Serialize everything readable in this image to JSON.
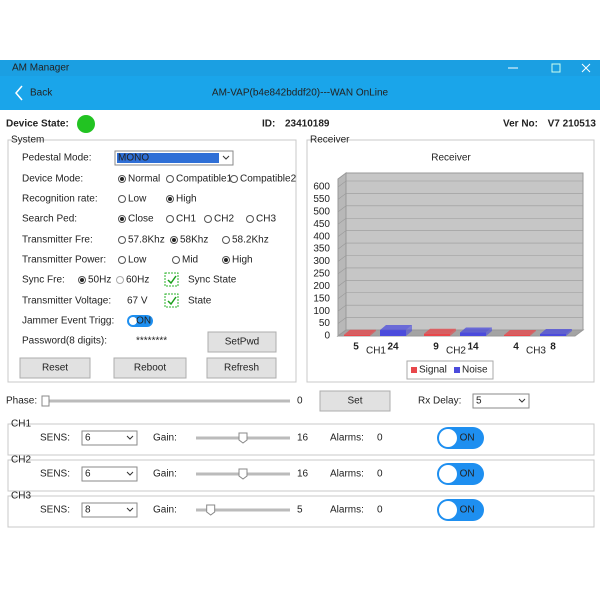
{
  "window": {
    "title": "AM Manager"
  },
  "header": {
    "back": "Back",
    "title": "AM-VAP(b4e842bddf20)---WAN OnLine"
  },
  "status": {
    "device_state_label": "Device State:",
    "id_label": "ID:",
    "id": "23410189",
    "ver_label": "Ver No:",
    "ver": "V7 210513"
  },
  "system": {
    "title": "System",
    "pedestal_mode": {
      "label": "Pedestal Mode:",
      "value": "MONO"
    },
    "device_mode": {
      "label": "Device Mode:",
      "options": [
        "Normal",
        "Compatible1",
        "Compatible2"
      ],
      "selected": 0
    },
    "recognition_rate": {
      "label": "Recognition rate:",
      "options": [
        "Low",
        "High"
      ],
      "selected": 1
    },
    "search_ped": {
      "label": "Search Ped:",
      "options": [
        "Close",
        "CH1",
        "CH2",
        "CH3"
      ],
      "selected": 0
    },
    "transmitter_fre": {
      "label": "Transmitter Fre:",
      "options": [
        "57.8Khz",
        "58Khz",
        "58.2Khz"
      ],
      "selected": 1
    },
    "transmitter_power": {
      "label": "Transmitter Power:",
      "options": [
        "Low",
        "Mid",
        "High"
      ],
      "selected": 2
    },
    "sync_fre": {
      "label": "Sync Fre:",
      "options": [
        "50Hz",
        "60Hz"
      ],
      "selected": 0,
      "state_label": "Sync State"
    },
    "transmitter_voltage": {
      "label": "Transmitter Voltage:",
      "value": "67 V",
      "state_label": "State"
    },
    "jammer": {
      "label": "Jammer Event Trigg:",
      "toggle": "ON"
    },
    "password": {
      "label": "Password(8 digits):",
      "value": "********",
      "button": "SetPwd"
    },
    "buttons": [
      "Reset",
      "Reboot",
      "Refresh"
    ]
  },
  "receiver": {
    "title": "Receiver"
  },
  "chart_data": {
    "type": "bar",
    "title": "Receiver",
    "categories": [
      "CH1",
      "CH2",
      "CH3"
    ],
    "series": [
      {
        "name": "Signal",
        "color": "#e8474b",
        "values": [
          5,
          9,
          4
        ]
      },
      {
        "name": "Noise",
        "color": "#4b4bdc",
        "values": [
          24,
          14,
          8
        ]
      }
    ],
    "ylim": [
      0,
      600
    ],
    "yticks": [
      0,
      50,
      100,
      150,
      200,
      250,
      300,
      350,
      400,
      450,
      500,
      550,
      600
    ],
    "grid": true
  },
  "phase": {
    "label": "Phase:",
    "value": 0,
    "button": "Set",
    "rx_delay_label": "Rx Delay:",
    "rx_delay": "5"
  },
  "channels": [
    {
      "name": "CH1",
      "sens_label": "SENS:",
      "sens": "6",
      "gain_label": "Gain:",
      "gain": 16,
      "alarms_label": "Alarms:",
      "alarms": 0,
      "toggle": "ON"
    },
    {
      "name": "CH2",
      "sens_label": "SENS:",
      "sens": "6",
      "gain_label": "Gain:",
      "gain": 16,
      "alarms_label": "Alarms:",
      "alarms": 0,
      "toggle": "ON"
    },
    {
      "name": "CH3",
      "sens_label": "SENS:",
      "sens": "8",
      "gain_label": "Gain:",
      "gain": 5,
      "alarms_label": "Alarms:",
      "alarms": 0,
      "toggle": "ON"
    }
  ]
}
